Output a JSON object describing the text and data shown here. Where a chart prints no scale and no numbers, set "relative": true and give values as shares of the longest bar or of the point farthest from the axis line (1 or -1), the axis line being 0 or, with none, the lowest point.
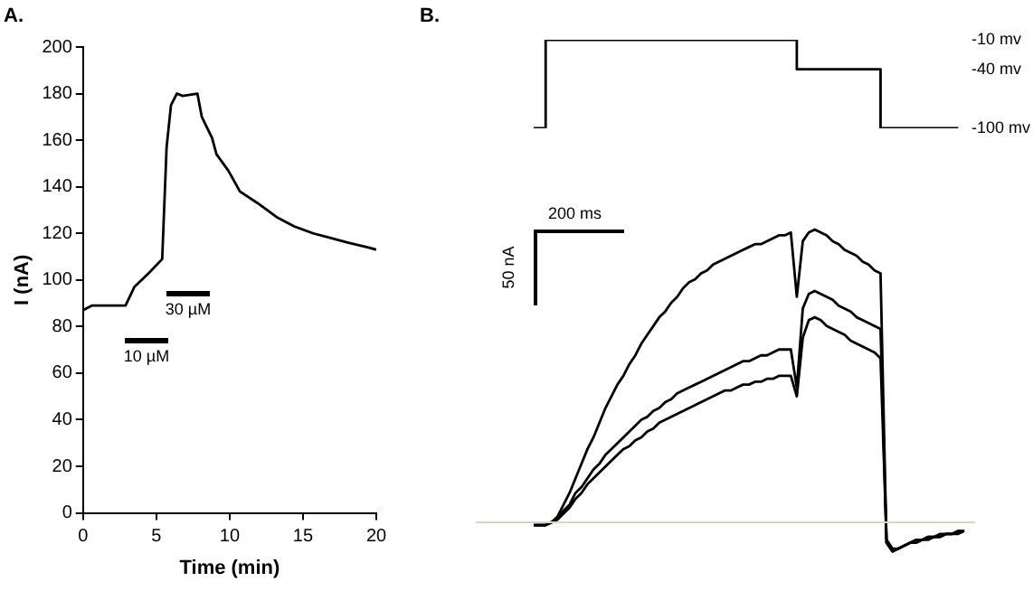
{
  "chart_data": [
    {
      "type": "line",
      "title": "A.",
      "xlabel": "Time (min)",
      "ylabel": "I (nA)",
      "x": [
        0,
        0.6,
        2.9,
        3.5,
        4.5,
        5.4,
        5.7,
        6.0,
        6.4,
        6.8,
        7.8,
        8.1,
        8.8,
        9.1,
        9.9,
        10.7,
        11.9,
        13.2,
        14.4,
        15.7,
        16.9,
        18.1,
        19.4,
        20
      ],
      "values": [
        87,
        89,
        89,
        97,
        103,
        109,
        157,
        175,
        180,
        179,
        180,
        170,
        161,
        154,
        147,
        138,
        133,
        127,
        123,
        120,
        118,
        116,
        114,
        113
      ],
      "color": "#000000",
      "xlim": [
        0,
        20
      ],
      "xticks": [
        0,
        5,
        10,
        15,
        20
      ],
      "ylim": [
        0,
        200
      ],
      "yticks": [
        0,
        20,
        40,
        60,
        80,
        100,
        120,
        140,
        160,
        180,
        200
      ],
      "grid": false,
      "marker": "none",
      "annotations": [
        "10 µM",
        "30 µM"
      ]
    },
    {
      "type": "step",
      "title": "B.",
      "tick_labels": "y",
      "marker": "none",
      "color": "#000000",
      "ylim": [
        -100,
        -10
      ],
      "yticks": [
        {
          "value": -10,
          "label": "-10 mv"
        },
        {
          "value": -40,
          "label": "-40 mv"
        },
        {
          "value": -100,
          "label": "-100 mv"
        }
      ],
      "categories": [
        null,
        null,
        null,
        null,
        null,
        null,
        null,
        null,
        null,
        null,
        null,
        null,
        null,
        null,
        null,
        null,
        null,
        null,
        null,
        null,
        null,
        null,
        null,
        null,
        null,
        null,
        null,
        null,
        null,
        null,
        null,
        null,
        null,
        null,
        null,
        null,
        null,
        null,
        null,
        null,
        null,
        null,
        null,
        null,
        null,
        null,
        null,
        null,
        null,
        null,
        null,
        null,
        null,
        null,
        null,
        null,
        null,
        null,
        null,
        null,
        null,
        null,
        null,
        null,
        null,
        null,
        null,
        null,
        null,
        null,
        null,
        null,
        null
      ],
      "values": [
        -100,
        -100,
        -10,
        -10,
        -10,
        -10,
        -10,
        -10,
        -10,
        -10,
        -10,
        -10,
        -10,
        -10,
        -10,
        -10,
        -10,
        -10,
        -10,
        -10,
        -10,
        -10,
        -10,
        -10,
        -10,
        -10,
        -10,
        -10,
        -10,
        -10,
        -10,
        -10,
        -10,
        -10,
        -10,
        -10,
        -10,
        -10,
        -10,
        -10,
        -10,
        -10,
        -10,
        -10,
        -40,
        -40,
        -40,
        -40,
        -40,
        -40,
        -40,
        -40,
        -40,
        -40,
        -40,
        -40,
        -40,
        -40,
        -100,
        -100,
        -100,
        -100,
        -100,
        -100,
        -100,
        -100,
        -100,
        -100,
        -100,
        -100,
        -100,
        -100,
        null
      ]
    },
    {
      "type": "line",
      "relative": true,
      "tick_labels": false,
      "marker": "none",
      "annotations": [
        "200 ms",
        "50 nA"
      ],
      "categories": [
        null,
        null,
        null,
        null,
        null,
        null,
        null,
        null,
        null,
        null,
        null,
        null,
        null,
        null,
        null,
        null,
        null,
        null,
        null,
        null,
        null,
        null,
        null,
        null,
        null,
        null,
        null,
        null,
        null,
        null,
        null,
        null,
        null,
        null,
        null,
        null,
        null,
        null,
        null,
        null,
        null,
        null,
        null,
        null,
        null,
        null,
        null,
        null,
        null,
        null,
        null,
        null,
        null,
        null,
        null,
        null,
        null,
        null,
        null,
        null,
        null,
        null,
        null,
        null,
        null,
        null,
        null,
        null,
        null,
        null,
        null,
        null,
        null
      ],
      "series": [
        {
          "color": "#000000",
          "values": [
            -0.01,
            -0.01,
            -0.01,
            0,
            0.02,
            0.06,
            0.1,
            0.15,
            0.2,
            0.25,
            0.29,
            0.34,
            0.39,
            0.43,
            0.47,
            0.5,
            0.54,
            0.57,
            0.61,
            0.64,
            0.67,
            0.7,
            0.72,
            0.75,
            0.77,
            0.8,
            0.82,
            0.83,
            0.85,
            0.86,
            0.88,
            0.89,
            0.9,
            0.91,
            0.92,
            0.93,
            0.94,
            0.95,
            0.95,
            0.96,
            0.97,
            0.98,
            0.98,
            0.99,
            0.77,
            0.96,
            0.99,
            1,
            0.99,
            0.98,
            0.96,
            0.95,
            0.93,
            0.92,
            0.91,
            0.89,
            0.88,
            0.86,
            0.85,
            -0.07,
            -0.1,
            -0.09,
            -0.08,
            -0.07,
            -0.06,
            -0.06,
            -0.05,
            -0.05,
            -0.05,
            -0.04,
            -0.04,
            -0.03,
            -0.03
          ]
        },
        {
          "color": "#000000",
          "values": [
            -0.01,
            -0.01,
            -0.01,
            0,
            0.01,
            0.04,
            0.06,
            0.1,
            0.12,
            0.15,
            0.18,
            0.2,
            0.23,
            0.25,
            0.27,
            0.29,
            0.31,
            0.33,
            0.35,
            0.36,
            0.38,
            0.39,
            0.41,
            0.42,
            0.44,
            0.45,
            0.46,
            0.47,
            0.48,
            0.49,
            0.5,
            0.51,
            0.52,
            0.53,
            0.54,
            0.55,
            0.55,
            0.56,
            0.57,
            0.57,
            0.58,
            0.59,
            0.59,
            0.59,
            0.46,
            0.73,
            0.78,
            0.79,
            0.78,
            0.77,
            0.76,
            0.74,
            0.73,
            0.72,
            0.7,
            0.69,
            0.68,
            0.67,
            0.66,
            -0.07,
            -0.1,
            -0.09,
            -0.08,
            -0.07,
            -0.07,
            -0.06,
            -0.06,
            -0.05,
            -0.05,
            -0.04,
            -0.04,
            -0.04,
            -0.03
          ]
        },
        {
          "color": "#000000",
          "values": [
            -0.01,
            -0.01,
            -0.01,
            0,
            0.01,
            0.03,
            0.05,
            0.08,
            0.1,
            0.13,
            0.15,
            0.17,
            0.19,
            0.21,
            0.23,
            0.25,
            0.26,
            0.28,
            0.29,
            0.31,
            0.32,
            0.34,
            0.35,
            0.36,
            0.37,
            0.38,
            0.39,
            0.4,
            0.41,
            0.42,
            0.43,
            0.44,
            0.45,
            0.45,
            0.46,
            0.47,
            0.47,
            0.48,
            0.48,
            0.49,
            0.49,
            0.5,
            0.5,
            0.5,
            0.43,
            0.63,
            0.69,
            0.7,
            0.69,
            0.67,
            0.66,
            0.65,
            0.64,
            0.62,
            0.61,
            0.6,
            0.59,
            0.58,
            0.56,
            -0.06,
            -0.09,
            -0.09,
            -0.08,
            -0.07,
            -0.06,
            -0.06,
            -0.05,
            -0.05,
            -0.04,
            -0.04,
            -0.04,
            -0.03,
            -0.03
          ]
        }
      ]
    }
  ]
}
